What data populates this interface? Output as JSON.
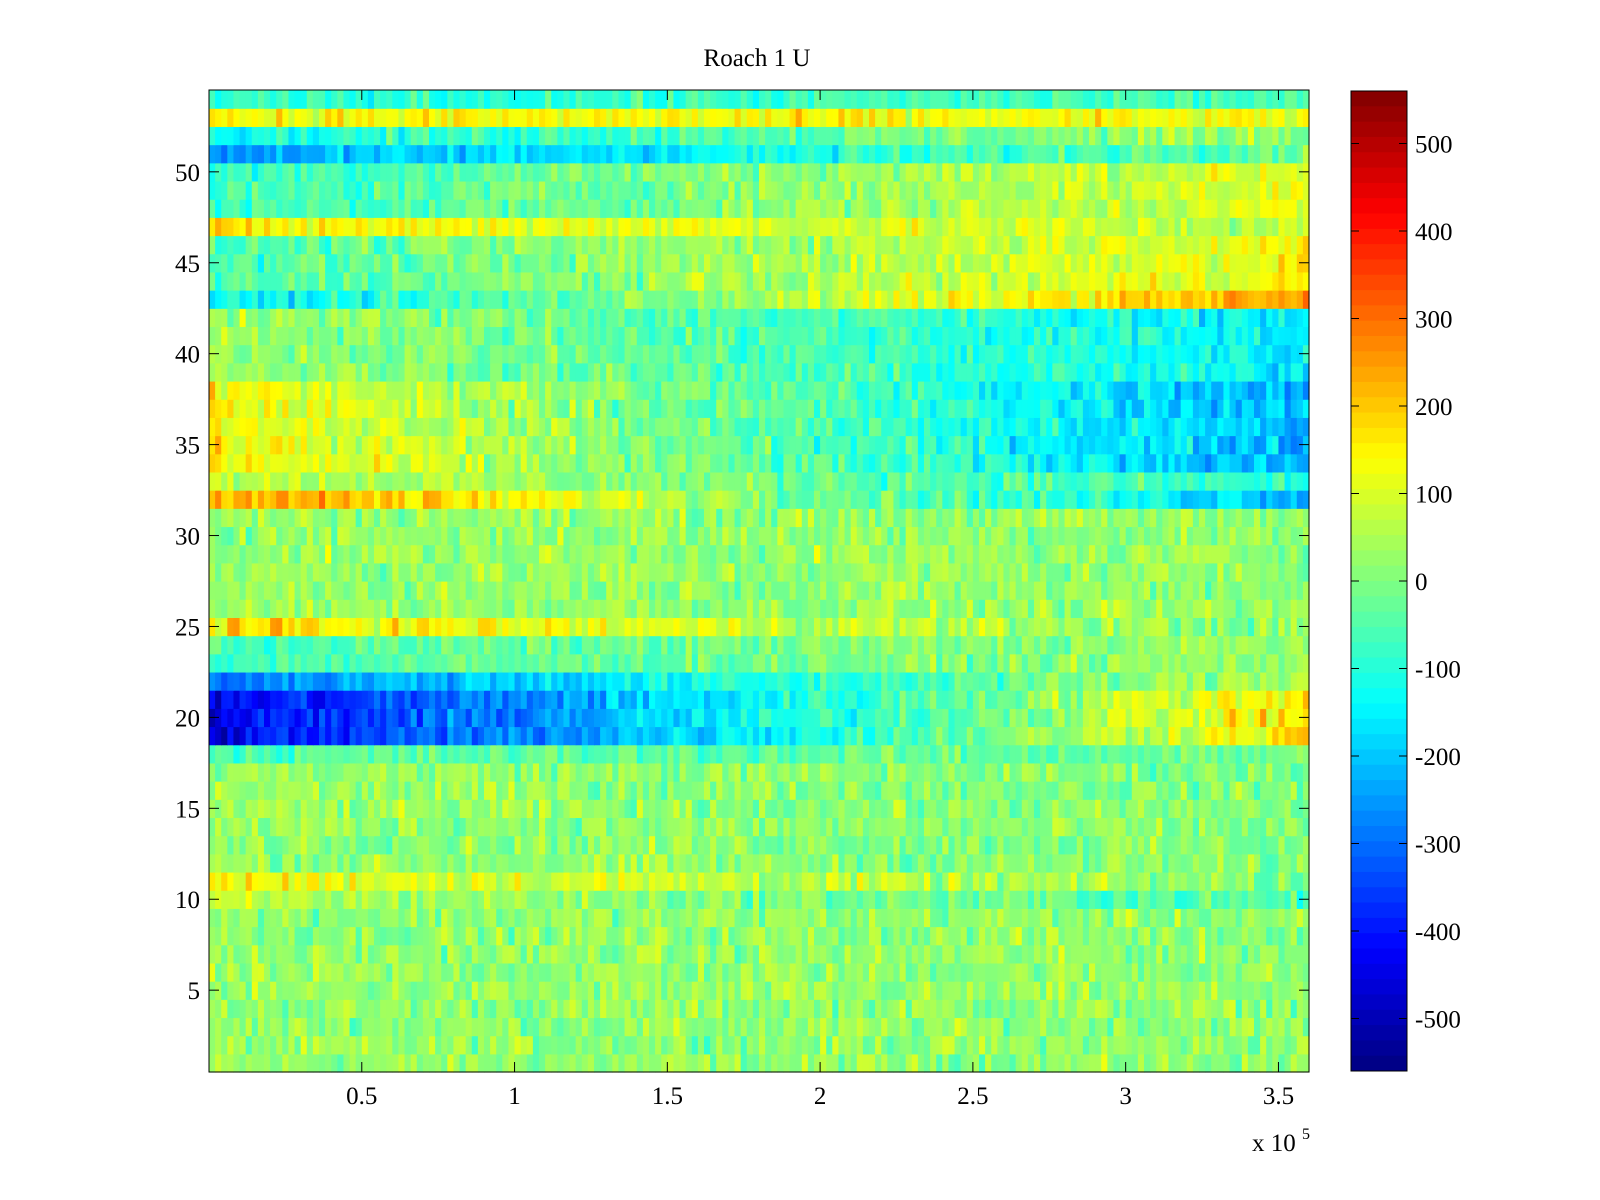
{
  "chart_data": {
    "type": "heatmap",
    "title": "Roach 1 U",
    "xlabel": "",
    "ylabel": "",
    "colormap": "jet",
    "x_range": [
      0,
      360000
    ],
    "y_range": [
      0.5,
      54.5
    ],
    "x_ticks": [
      50000,
      100000,
      150000,
      200000,
      250000,
      300000,
      350000
    ],
    "x_tick_labels": [
      "0.5",
      "1",
      "1.5",
      "2",
      "2.5",
      "3",
      "3.5"
    ],
    "x_multiplier_label": "x 10",
    "x_multiplier_exponent": "5",
    "y_ticks": [
      5,
      10,
      15,
      20,
      25,
      30,
      35,
      40,
      45,
      50
    ],
    "y_tick_labels": [
      "5",
      "10",
      "15",
      "20",
      "25",
      "30",
      "35",
      "40",
      "45",
      "50"
    ],
    "color_range": [
      -560,
      560
    ],
    "colorbar_ticks": [
      500,
      400,
      300,
      200,
      100,
      0,
      -100,
      -200,
      -300,
      -400,
      -500
    ],
    "colorbar_tick_labels": [
      "500",
      "400",
      "300",
      "200",
      "100",
      "0",
      "-100",
      "-200",
      "-300",
      "-400",
      "-500"
    ],
    "rows": 54,
    "row_profiles": [
      {
        "rows": [
          1,
          9
        ],
        "start": 20,
        "end": 20,
        "noise": 55
      },
      {
        "rows": [
          10,
          10
        ],
        "start": 60,
        "end": -60,
        "noise": 55
      },
      {
        "rows": [
          11,
          11
        ],
        "start": 140,
        "end": 0,
        "noise": 60
      },
      {
        "rows": [
          12,
          17
        ],
        "start": 30,
        "end": 0,
        "noise": 55
      },
      {
        "rows": [
          18,
          18
        ],
        "start": -50,
        "end": -20,
        "noise": 50
      },
      {
        "rows": [
          19,
          21
        ],
        "start": -440,
        "end": 170,
        "noise": 60
      },
      {
        "rows": [
          22,
          22
        ],
        "start": -280,
        "end": 60,
        "noise": 55
      },
      {
        "rows": [
          23,
          24
        ],
        "start": -60,
        "end": 30,
        "noise": 50
      },
      {
        "rows": [
          25,
          25
        ],
        "start": 170,
        "end": 0,
        "noise": 60
      },
      {
        "rows": [
          26,
          31
        ],
        "start": 30,
        "end": 20,
        "noise": 55
      },
      {
        "rows": [
          32,
          32
        ],
        "start": 260,
        "end": -200,
        "noise": 60
      },
      {
        "rows": [
          33,
          33
        ],
        "start": 80,
        "end": -100,
        "noise": 55
      },
      {
        "rows": [
          34,
          38
        ],
        "start": 140,
        "end": -220,
        "noise": 60
      },
      {
        "rows": [
          39,
          42
        ],
        "start": 40,
        "end": -150,
        "noise": 55
      },
      {
        "rows": [
          43,
          43
        ],
        "start": -160,
        "end": 240,
        "noise": 55
      },
      {
        "rows": [
          44,
          46
        ],
        "start": -60,
        "end": 140,
        "noise": 55
      },
      {
        "rows": [
          47,
          47
        ],
        "start": 150,
        "end": 60,
        "noise": 55
      },
      {
        "rows": [
          48,
          50
        ],
        "start": -80,
        "end": 110,
        "noise": 55
      },
      {
        "rows": [
          51,
          51
        ],
        "start": -250,
        "end": 0,
        "noise": 55
      },
      {
        "rows": [
          52,
          52
        ],
        "start": -120,
        "end": 40,
        "noise": 55
      },
      {
        "rows": [
          53,
          53
        ],
        "start": 140,
        "end": 120,
        "noise": 55
      },
      {
        "rows": [
          54,
          54
        ],
        "start": -100,
        "end": -60,
        "noise": 50
      }
    ]
  }
}
